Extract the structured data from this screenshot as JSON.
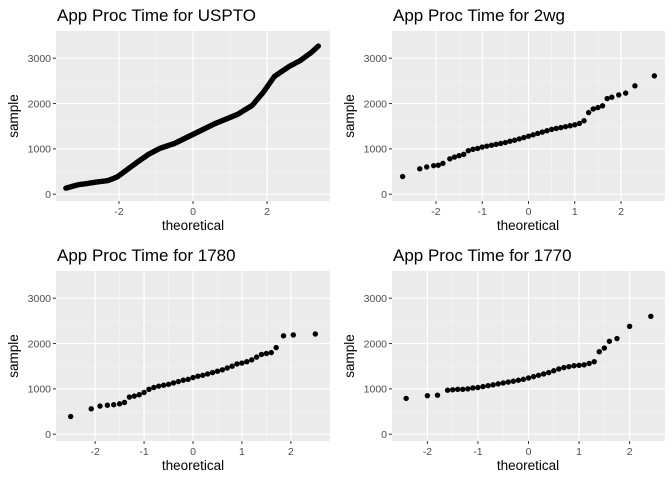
{
  "chart_data": [
    {
      "type": "scatter",
      "title": "App Proc Time for USPTO",
      "xlabel": "theoretical",
      "ylabel": "sample",
      "xticks": [
        -2,
        0,
        2
      ],
      "yticks": [
        0,
        1000,
        2000,
        3000
      ],
      "xlim": [
        -3.7,
        3.7
      ],
      "ylim": [
        -150,
        3600
      ],
      "grid": true,
      "anchors": [
        [
          -3.45,
          130
        ],
        [
          -3.1,
          210
        ],
        [
          -2.9,
          230
        ],
        [
          -2.6,
          270
        ],
        [
          -2.3,
          300
        ],
        [
          -2.05,
          380
        ],
        [
          -1.8,
          530
        ],
        [
          -1.5,
          710
        ],
        [
          -1.2,
          880
        ],
        [
          -0.9,
          1010
        ],
        [
          -0.5,
          1120
        ],
        [
          0,
          1320
        ],
        [
          0.6,
          1560
        ],
        [
          1.2,
          1760
        ],
        [
          1.6,
          1960
        ],
        [
          1.9,
          2250
        ],
        [
          2.2,
          2600
        ],
        [
          2.6,
          2820
        ],
        [
          2.9,
          2950
        ],
        [
          3.1,
          3070
        ],
        [
          3.2,
          3130
        ],
        [
          3.4,
          3280
        ]
      ],
      "n": 300
    },
    {
      "type": "scatter",
      "title": "App Proc Time for 2wg",
      "xlabel": "theoretical",
      "ylabel": "sample",
      "xticks": [
        -2,
        -1,
        0,
        1,
        2
      ],
      "yticks": [
        0,
        1000,
        2000,
        3000
      ],
      "xlim": [
        -2.95,
        2.95
      ],
      "ylim": [
        -150,
        3600
      ],
      "grid": true,
      "points": [
        [
          -2.72,
          390
        ],
        [
          -2.35,
          560
        ],
        [
          -2.2,
          600
        ],
        [
          -2.05,
          630
        ],
        [
          -1.95,
          640
        ],
        [
          -1.85,
          680
        ],
        [
          -1.7,
          780
        ],
        [
          -1.6,
          820
        ],
        [
          -1.5,
          850
        ],
        [
          -1.4,
          880
        ],
        [
          -1.3,
          960
        ],
        [
          -1.2,
          990
        ],
        [
          -1.1,
          1010
        ],
        [
          -1.0,
          1040
        ],
        [
          -0.9,
          1060
        ],
        [
          -0.8,
          1080
        ],
        [
          -0.7,
          1100
        ],
        [
          -0.6,
          1120
        ],
        [
          -0.5,
          1140
        ],
        [
          -0.4,
          1170
        ],
        [
          -0.3,
          1190
        ],
        [
          -0.2,
          1220
        ],
        [
          -0.1,
          1250
        ],
        [
          0.0,
          1280
        ],
        [
          0.1,
          1310
        ],
        [
          0.2,
          1340
        ],
        [
          0.3,
          1370
        ],
        [
          0.4,
          1400
        ],
        [
          0.5,
          1430
        ],
        [
          0.6,
          1450
        ],
        [
          0.7,
          1470
        ],
        [
          0.8,
          1490
        ],
        [
          0.9,
          1510
        ],
        [
          1.0,
          1530
        ],
        [
          1.1,
          1560
        ],
        [
          1.2,
          1620
        ],
        [
          1.3,
          1800
        ],
        [
          1.4,
          1880
        ],
        [
          1.5,
          1910
        ],
        [
          1.6,
          1950
        ],
        [
          1.7,
          2110
        ],
        [
          1.8,
          2140
        ],
        [
          1.95,
          2190
        ],
        [
          2.1,
          2230
        ],
        [
          2.3,
          2390
        ],
        [
          2.72,
          2610
        ]
      ]
    },
    {
      "type": "scatter",
      "title": "App Proc Time for 1780",
      "xlabel": "theoretical",
      "ylabel": "sample",
      "xticks": [
        -2,
        -1,
        0,
        1,
        2
      ],
      "yticks": [
        0,
        1000,
        2000,
        3000
      ],
      "xlim": [
        -2.8,
        2.8
      ],
      "ylim": [
        -150,
        3600
      ],
      "grid": true,
      "points": [
        [
          -2.5,
          390
        ],
        [
          -2.08,
          560
        ],
        [
          -1.9,
          620
        ],
        [
          -1.75,
          640
        ],
        [
          -1.62,
          650
        ],
        [
          -1.5,
          670
        ],
        [
          -1.4,
          700
        ],
        [
          -1.3,
          820
        ],
        [
          -1.2,
          840
        ],
        [
          -1.1,
          870
        ],
        [
          -1.0,
          920
        ],
        [
          -0.9,
          990
        ],
        [
          -0.8,
          1030
        ],
        [
          -0.7,
          1060
        ],
        [
          -0.6,
          1080
        ],
        [
          -0.5,
          1100
        ],
        [
          -0.4,
          1130
        ],
        [
          -0.3,
          1160
        ],
        [
          -0.2,
          1190
        ],
        [
          -0.1,
          1210
        ],
        [
          0.0,
          1250
        ],
        [
          0.1,
          1280
        ],
        [
          0.2,
          1300
        ],
        [
          0.3,
          1330
        ],
        [
          0.4,
          1360
        ],
        [
          0.5,
          1390
        ],
        [
          0.6,
          1420
        ],
        [
          0.7,
          1460
        ],
        [
          0.8,
          1500
        ],
        [
          0.9,
          1550
        ],
        [
          1.0,
          1570
        ],
        [
          1.1,
          1600
        ],
        [
          1.2,
          1640
        ],
        [
          1.3,
          1700
        ],
        [
          1.4,
          1760
        ],
        [
          1.5,
          1780
        ],
        [
          1.6,
          1800
        ],
        [
          1.7,
          1910
        ],
        [
          1.85,
          2170
        ],
        [
          2.05,
          2190
        ],
        [
          2.5,
          2210
        ]
      ]
    },
    {
      "type": "scatter",
      "title": "App Proc Time for 1770",
      "xlabel": "theoretical",
      "ylabel": "sample",
      "xticks": [
        -2,
        -1,
        0,
        1,
        2
      ],
      "yticks": [
        0,
        1000,
        2000,
        3000
      ],
      "xlim": [
        -2.7,
        2.7
      ],
      "ylim": [
        -150,
        3600
      ],
      "grid": true,
      "points": [
        [
          -2.42,
          790
        ],
        [
          -2.0,
          850
        ],
        [
          -1.8,
          860
        ],
        [
          -1.6,
          970
        ],
        [
          -1.5,
          980
        ],
        [
          -1.4,
          990
        ],
        [
          -1.3,
          990
        ],
        [
          -1.2,
          1000
        ],
        [
          -1.1,
          1020
        ],
        [
          -1.0,
          1030
        ],
        [
          -0.9,
          1050
        ],
        [
          -0.8,
          1070
        ],
        [
          -0.7,
          1090
        ],
        [
          -0.6,
          1110
        ],
        [
          -0.5,
          1130
        ],
        [
          -0.4,
          1150
        ],
        [
          -0.3,
          1170
        ],
        [
          -0.2,
          1190
        ],
        [
          -0.1,
          1210
        ],
        [
          0.0,
          1240
        ],
        [
          0.1,
          1270
        ],
        [
          0.2,
          1300
        ],
        [
          0.3,
          1330
        ],
        [
          0.4,
          1360
        ],
        [
          0.5,
          1400
        ],
        [
          0.6,
          1440
        ],
        [
          0.7,
          1470
        ],
        [
          0.8,
          1490
        ],
        [
          0.9,
          1510
        ],
        [
          1.0,
          1520
        ],
        [
          1.1,
          1530
        ],
        [
          1.2,
          1560
        ],
        [
          1.3,
          1600
        ],
        [
          1.4,
          1820
        ],
        [
          1.5,
          1900
        ],
        [
          1.6,
          2050
        ],
        [
          1.75,
          2110
        ],
        [
          2.0,
          2380
        ],
        [
          2.42,
          2600
        ]
      ]
    }
  ]
}
